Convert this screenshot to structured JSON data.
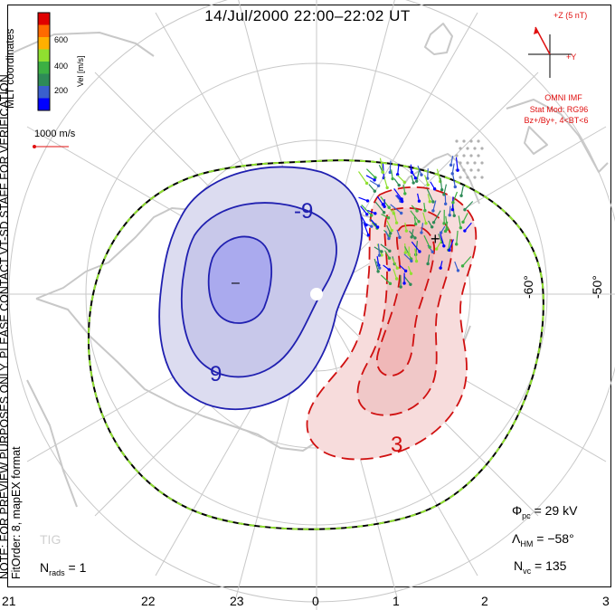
{
  "title": "14/Jul/2000 22:00–22:02 UT",
  "mlt_coords": "MLT coordinates",
  "note_line1": "NOTE: FOR PREVIEW PURPOSES ONLY. PLEASE CONTACT VT-SD STAFF FOR VERIFICATION.",
  "note_line2": "FitOrder: 8, mapEX format",
  "colorbar": {
    "label": "Vel [m/s]",
    "ticks": [
      "600",
      "400",
      "200"
    ],
    "colors": [
      "#e00000",
      "#ff6a00",
      "#ffb000",
      "#90e030",
      "#3cb043",
      "#2e8b57",
      "#3a5fcd",
      "#0000ff"
    ]
  },
  "scale_vector": {
    "label": "1000 m/s",
    "color": "#e01010"
  },
  "imf": {
    "z_label": "+Z (5 nT)",
    "y_label": "+Y",
    "source": "OMNI IMF",
    "stat_mod": "Stat Mod: RG96",
    "condition": "Bz+/By+, 4<BT<6",
    "color": "#e01010"
  },
  "lat_labels": [
    "-60°",
    "-50°"
  ],
  "contour_labels": {
    "negative": "-9",
    "negative_b": "9",
    "positive": "3"
  },
  "markers": {
    "minimum": "–",
    "maximum": "+"
  },
  "stats": {
    "phi_symbol": "Φ",
    "phi_sub": "pc",
    "phi_value": "= 29 kV",
    "lambda_symbol": "Λ",
    "lambda_sub": "HM",
    "lambda_value": "= −58°",
    "nvc_symbol": "N",
    "nvc_sub": "vc",
    "nvc_value": "= 135",
    "nrads_symbol": "N",
    "nrads_sub": "rads",
    "nrads_value": "= 1"
  },
  "watermark": "TIG",
  "mlt_ticks": [
    "21",
    "22",
    "23",
    "0",
    "1",
    "2",
    "3"
  ],
  "colors": {
    "negative_fill": "#dcdcf0",
    "negative_core": "#aaaaee",
    "negative_line": "#2020b0",
    "positive_fill": "#f7dcdc",
    "positive_core": "#f0b8b8",
    "positive_line": "#d01010",
    "coast": "#c8c8c8",
    "grid": "#c8c8c8",
    "hm_boundary_a": "#000000",
    "hm_boundary_b": "#90e030"
  }
}
